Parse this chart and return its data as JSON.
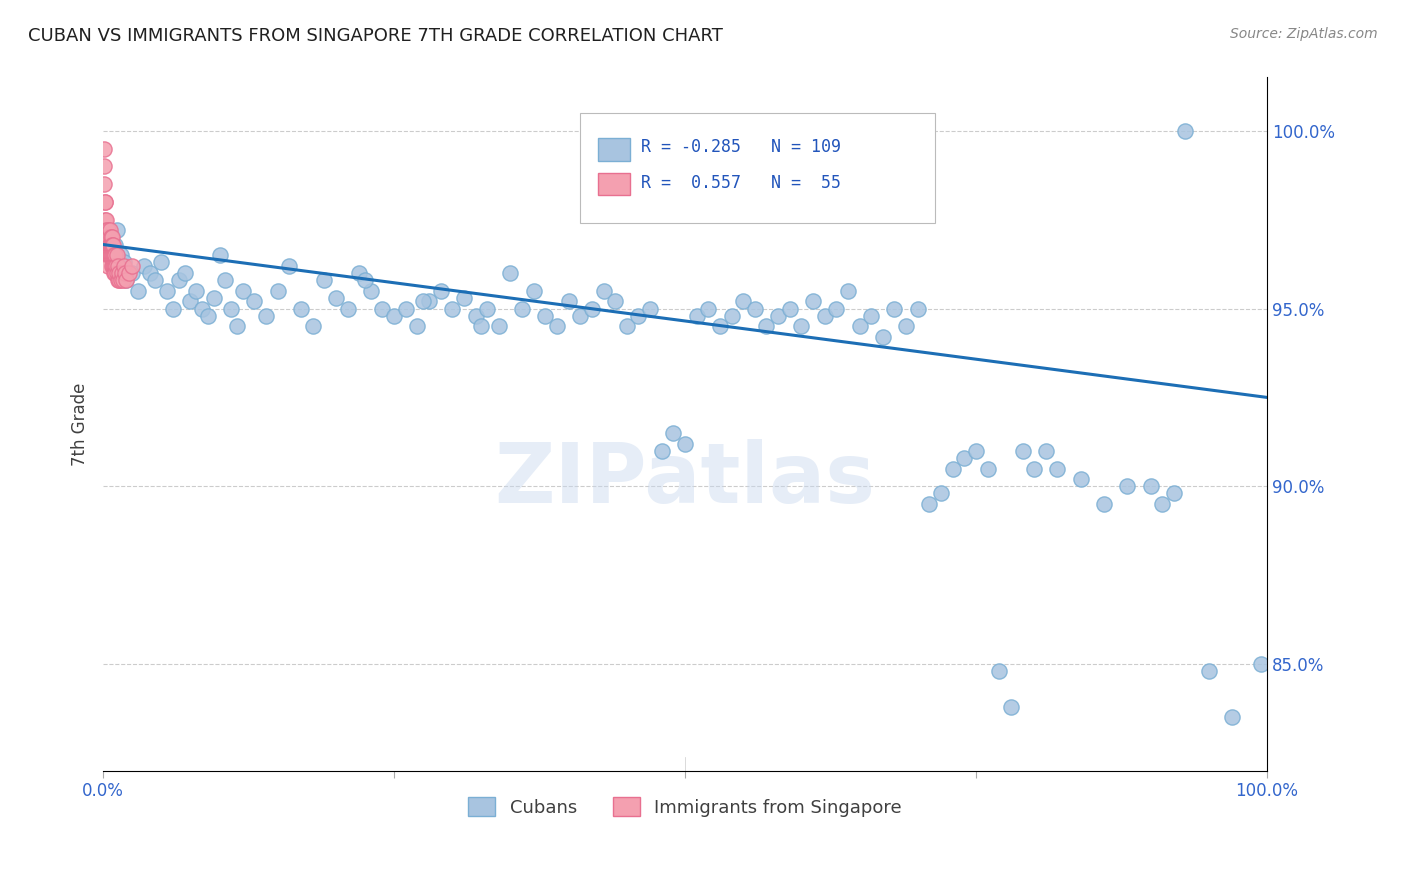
{
  "title": "CUBAN VS IMMIGRANTS FROM SINGAPORE 7TH GRADE CORRELATION CHART",
  "source": "Source: ZipAtlas.com",
  "ylabel": "7th Grade",
  "watermark": "ZIPatlas",
  "blue_R": -0.285,
  "blue_N": 109,
  "pink_R": 0.557,
  "pink_N": 55,
  "blue_color": "#a8c4e0",
  "blue_edge": "#7bafd4",
  "pink_color": "#f4a0b0",
  "pink_edge": "#e87090",
  "trend_color": "#1c6eb5",
  "legend_label_blue": "Cubans",
  "legend_label_pink": "Immigrants from Singapore",
  "right_yticks": [
    85.0,
    90.0,
    95.0,
    100.0
  ],
  "xmin": 0.0,
  "xmax": 100.0,
  "ymin": 82.0,
  "ymax": 101.5,
  "blue_scatter_x": [
    0.5,
    0.7,
    1.0,
    1.2,
    1.5,
    1.8,
    2.0,
    2.5,
    3.0,
    3.5,
    4.0,
    4.5,
    5.0,
    5.5,
    6.0,
    6.5,
    7.0,
    7.5,
    8.0,
    8.5,
    9.0,
    9.5,
    10.0,
    10.5,
    11.0,
    11.5,
    12.0,
    13.0,
    14.0,
    15.0,
    16.0,
    17.0,
    18.0,
    19.0,
    20.0,
    21.0,
    22.0,
    23.0,
    24.0,
    25.0,
    26.0,
    27.0,
    28.0,
    29.0,
    30.0,
    31.0,
    32.0,
    33.0,
    34.0,
    35.0,
    36.0,
    37.0,
    38.0,
    39.0,
    40.0,
    41.0,
    42.0,
    43.0,
    44.0,
    45.0,
    46.0,
    47.0,
    48.0,
    49.0,
    50.0,
    51.0,
    52.0,
    53.0,
    54.0,
    55.0,
    56.0,
    57.0,
    58.0,
    59.0,
    60.0,
    61.0,
    62.0,
    63.0,
    64.0,
    65.0,
    66.0,
    67.0,
    68.0,
    69.0,
    70.0,
    71.0,
    72.0,
    73.0,
    74.0,
    75.0,
    76.0,
    77.0,
    78.0,
    79.0,
    80.0,
    81.0,
    82.0,
    84.0,
    86.0,
    88.0,
    90.0,
    91.0,
    92.0,
    93.0,
    95.0,
    97.0,
    99.5,
    22.5,
    27.5,
    32.5
  ],
  "blue_scatter_y": [
    96.5,
    97.0,
    96.8,
    97.2,
    96.5,
    96.3,
    95.8,
    96.0,
    95.5,
    96.2,
    96.0,
    95.8,
    96.3,
    95.5,
    95.0,
    95.8,
    96.0,
    95.2,
    95.5,
    95.0,
    94.8,
    95.3,
    96.5,
    95.8,
    95.0,
    94.5,
    95.5,
    95.2,
    94.8,
    95.5,
    96.2,
    95.0,
    94.5,
    95.8,
    95.3,
    95.0,
    96.0,
    95.5,
    95.0,
    94.8,
    95.0,
    94.5,
    95.2,
    95.5,
    95.0,
    95.3,
    94.8,
    95.0,
    94.5,
    96.0,
    95.0,
    95.5,
    94.8,
    94.5,
    95.2,
    94.8,
    95.0,
    95.5,
    95.2,
    94.5,
    94.8,
    95.0,
    91.0,
    91.5,
    91.2,
    94.8,
    95.0,
    94.5,
    94.8,
    95.2,
    95.0,
    94.5,
    94.8,
    95.0,
    94.5,
    95.2,
    94.8,
    95.0,
    95.5,
    94.5,
    94.8,
    94.2,
    95.0,
    94.5,
    95.0,
    89.5,
    89.8,
    90.5,
    90.8,
    91.0,
    90.5,
    84.8,
    83.8,
    91.0,
    90.5,
    91.0,
    90.5,
    90.2,
    89.5,
    90.0,
    90.0,
    89.5,
    89.8,
    100.0,
    84.8,
    83.5,
    85.0,
    95.8,
    95.2,
    94.5
  ],
  "pink_scatter_x": [
    0.05,
    0.08,
    0.1,
    0.12,
    0.15,
    0.18,
    0.2,
    0.22,
    0.25,
    0.28,
    0.3,
    0.32,
    0.35,
    0.38,
    0.4,
    0.42,
    0.45,
    0.48,
    0.5,
    0.52,
    0.55,
    0.58,
    0.6,
    0.62,
    0.65,
    0.68,
    0.7,
    0.72,
    0.75,
    0.78,
    0.8,
    0.82,
    0.85,
    0.88,
    0.9,
    0.92,
    0.95,
    0.98,
    1.0,
    1.05,
    1.1,
    1.15,
    1.2,
    1.25,
    1.3,
    1.35,
    1.4,
    1.5,
    1.6,
    1.7,
    1.8,
    1.9,
    2.0,
    2.2,
    2.5
  ],
  "pink_scatter_y": [
    99.0,
    98.5,
    99.5,
    98.0,
    97.5,
    98.0,
    97.0,
    97.5,
    96.8,
    97.2,
    96.5,
    97.0,
    96.8,
    97.2,
    96.5,
    97.0,
    96.2,
    96.8,
    96.5,
    97.0,
    96.8,
    96.5,
    97.2,
    96.8,
    97.0,
    96.5,
    96.8,
    96.5,
    97.0,
    96.2,
    96.8,
    96.5,
    96.2,
    96.8,
    96.5,
    96.2,
    96.0,
    96.5,
    96.2,
    96.0,
    96.2,
    96.5,
    96.0,
    95.8,
    96.2,
    95.8,
    96.0,
    95.8,
    96.0,
    95.8,
    96.2,
    96.0,
    95.8,
    96.0,
    96.2
  ],
  "trend_x_start": 0.0,
  "trend_x_end": 100.0,
  "trend_y_start": 96.8,
  "trend_y_end": 92.5
}
